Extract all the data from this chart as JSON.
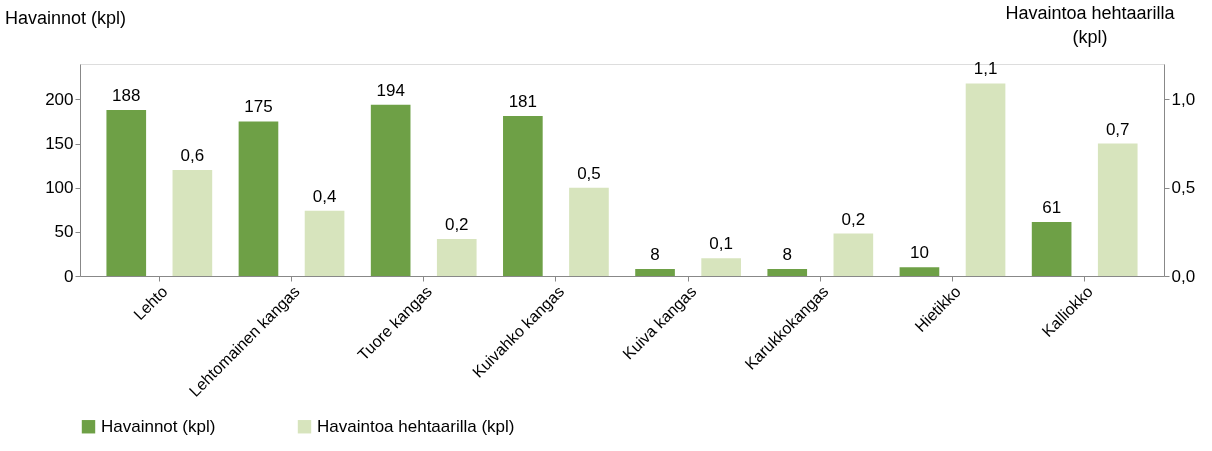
{
  "chart_data": {
    "type": "bar",
    "categories": [
      "Lehto",
      "Lehtomainen kangas",
      "Tuore kangas",
      "Kuivahko kangas",
      "Kuiva kangas",
      "Karukkokangas",
      "Hietikko",
      "Kalliokko"
    ],
    "ylabel": "Havainnot (kpl)",
    "y2label": "Havaintoa hehtaarilla (kpl)",
    "series": [
      {
        "name": "Havainnot (kpl)",
        "color": "#6ea046",
        "values": [
          188,
          175,
          194,
          181,
          8,
          8,
          10,
          61
        ],
        "value_labels": [
          "188",
          "175",
          "194",
          "181",
          "8",
          "8",
          "10",
          "61"
        ]
      },
      {
        "name": "Havaintoa hehtaarilla (kpl)",
        "color": "#d7e4bd",
        "axis": "y2",
        "values": [
          0.6,
          0.37,
          0.21,
          0.5,
          0.1,
          0.24,
          1.09,
          0.75
        ],
        "value_labels": [
          "0,6",
          "0,4",
          "0,2",
          "0,5",
          "0,1",
          "0,2",
          "1,1",
          "0,7"
        ]
      }
    ],
    "ylim": [
      0,
      240
    ],
    "yticks": [
      0,
      50,
      100,
      150,
      200
    ],
    "y2lim": [
      0,
      1.2
    ],
    "y2ticks": [
      {
        "value": 0,
        "label": "0,0"
      },
      {
        "value": 0.5,
        "label": "0,5"
      },
      {
        "value": 1.0,
        "label": "1,0"
      }
    ],
    "grid": false,
    "legend": "bottom"
  }
}
